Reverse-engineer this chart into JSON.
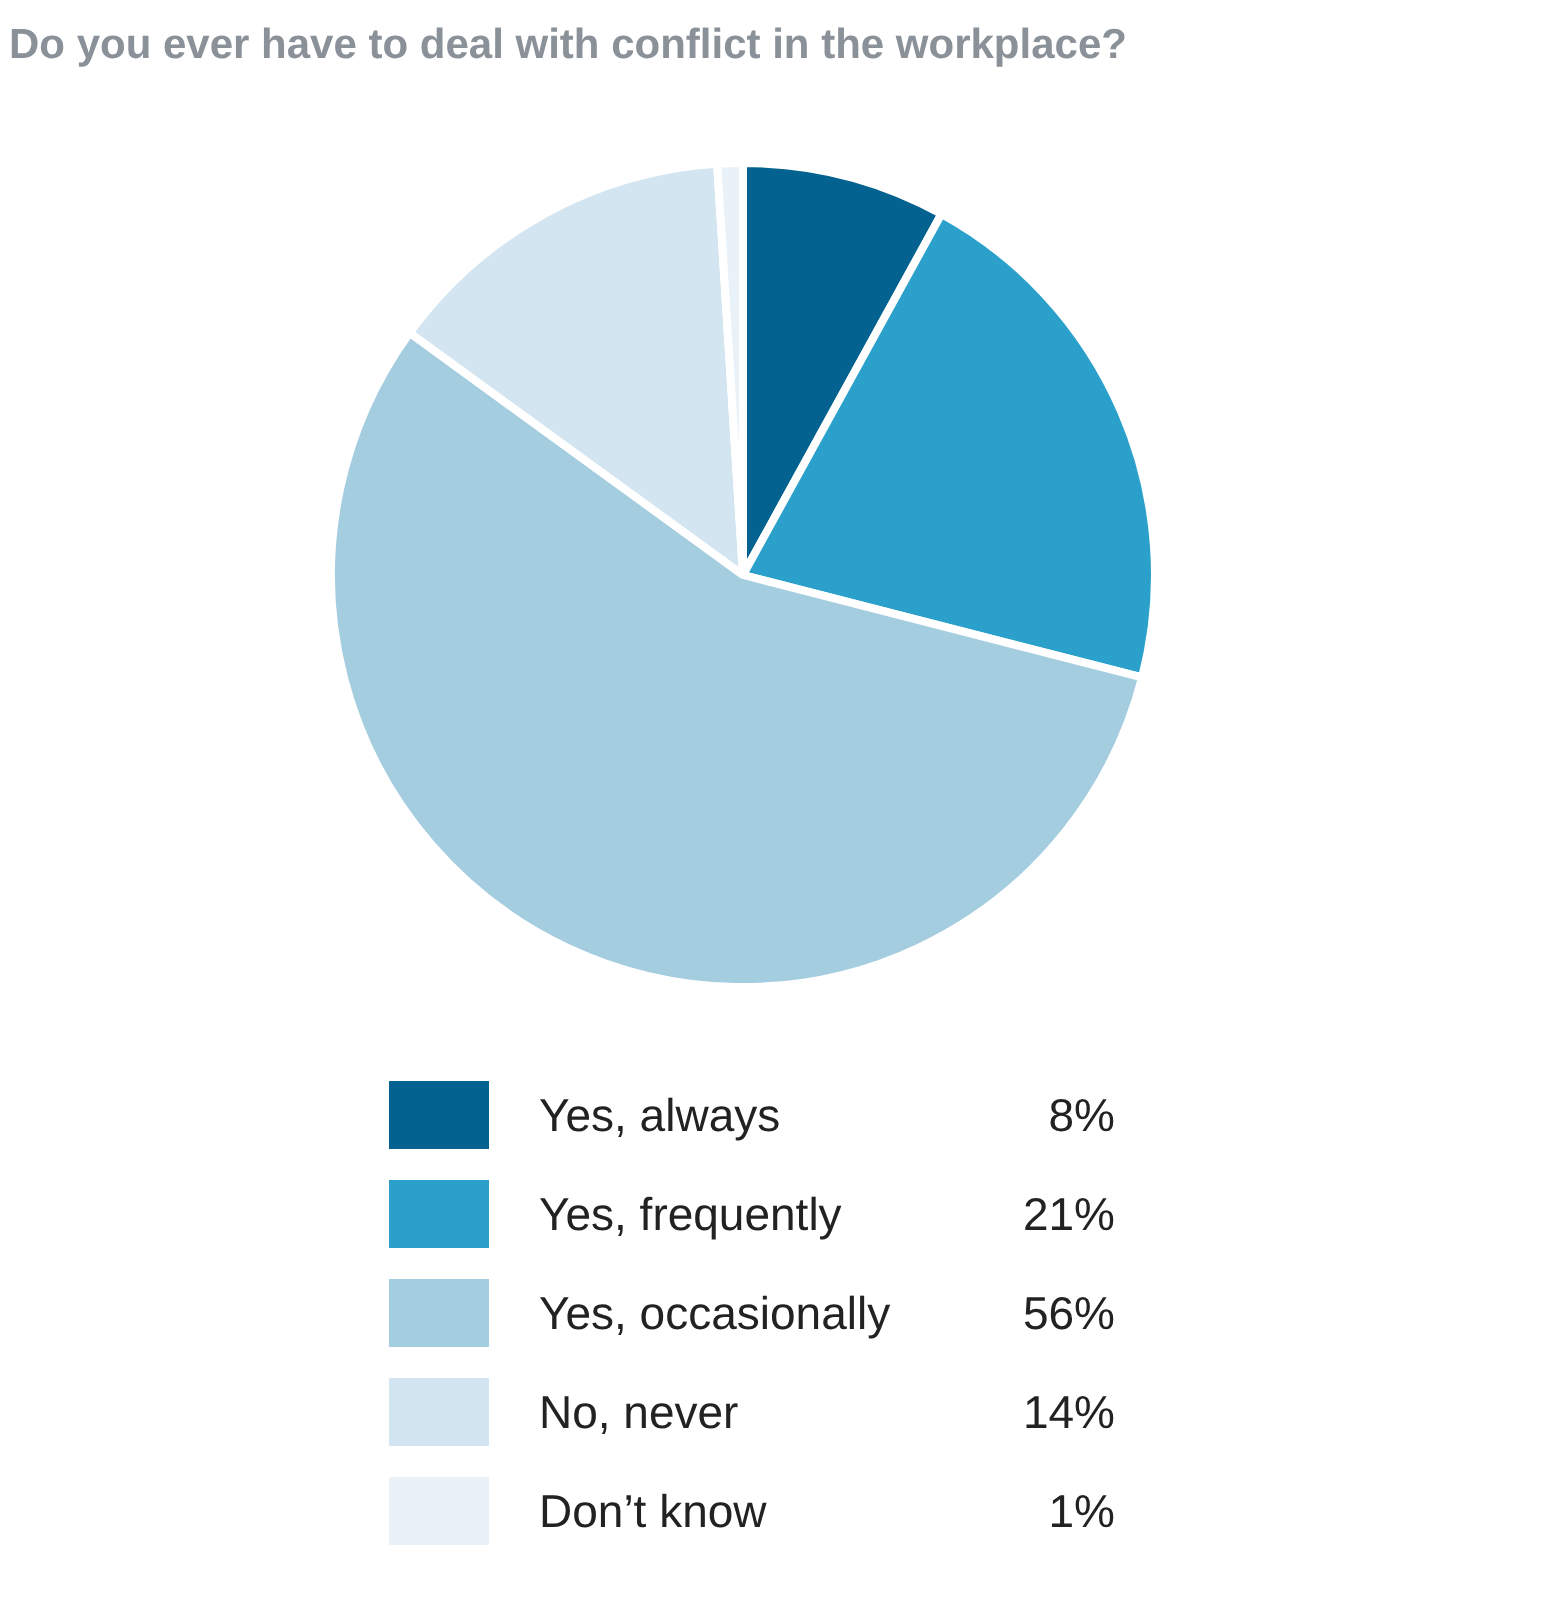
{
  "chart_data": {
    "type": "pie",
    "title": "Do you ever have to deal with conflict in the workplace?",
    "categories": [
      "Yes, always",
      "Yes, frequently",
      "Yes, occasionally",
      "No, never",
      "Don’t know"
    ],
    "values": [
      8,
      21,
      56,
      14,
      1
    ],
    "colors": [
      "#03628f",
      "#2aa0cb",
      "#a5cde0",
      "#d2e5f0",
      "#e9f2f9"
    ],
    "value_labels": [
      "8%",
      "21%",
      "56%",
      "14%",
      "1%"
    ],
    "legend": "bottom"
  }
}
